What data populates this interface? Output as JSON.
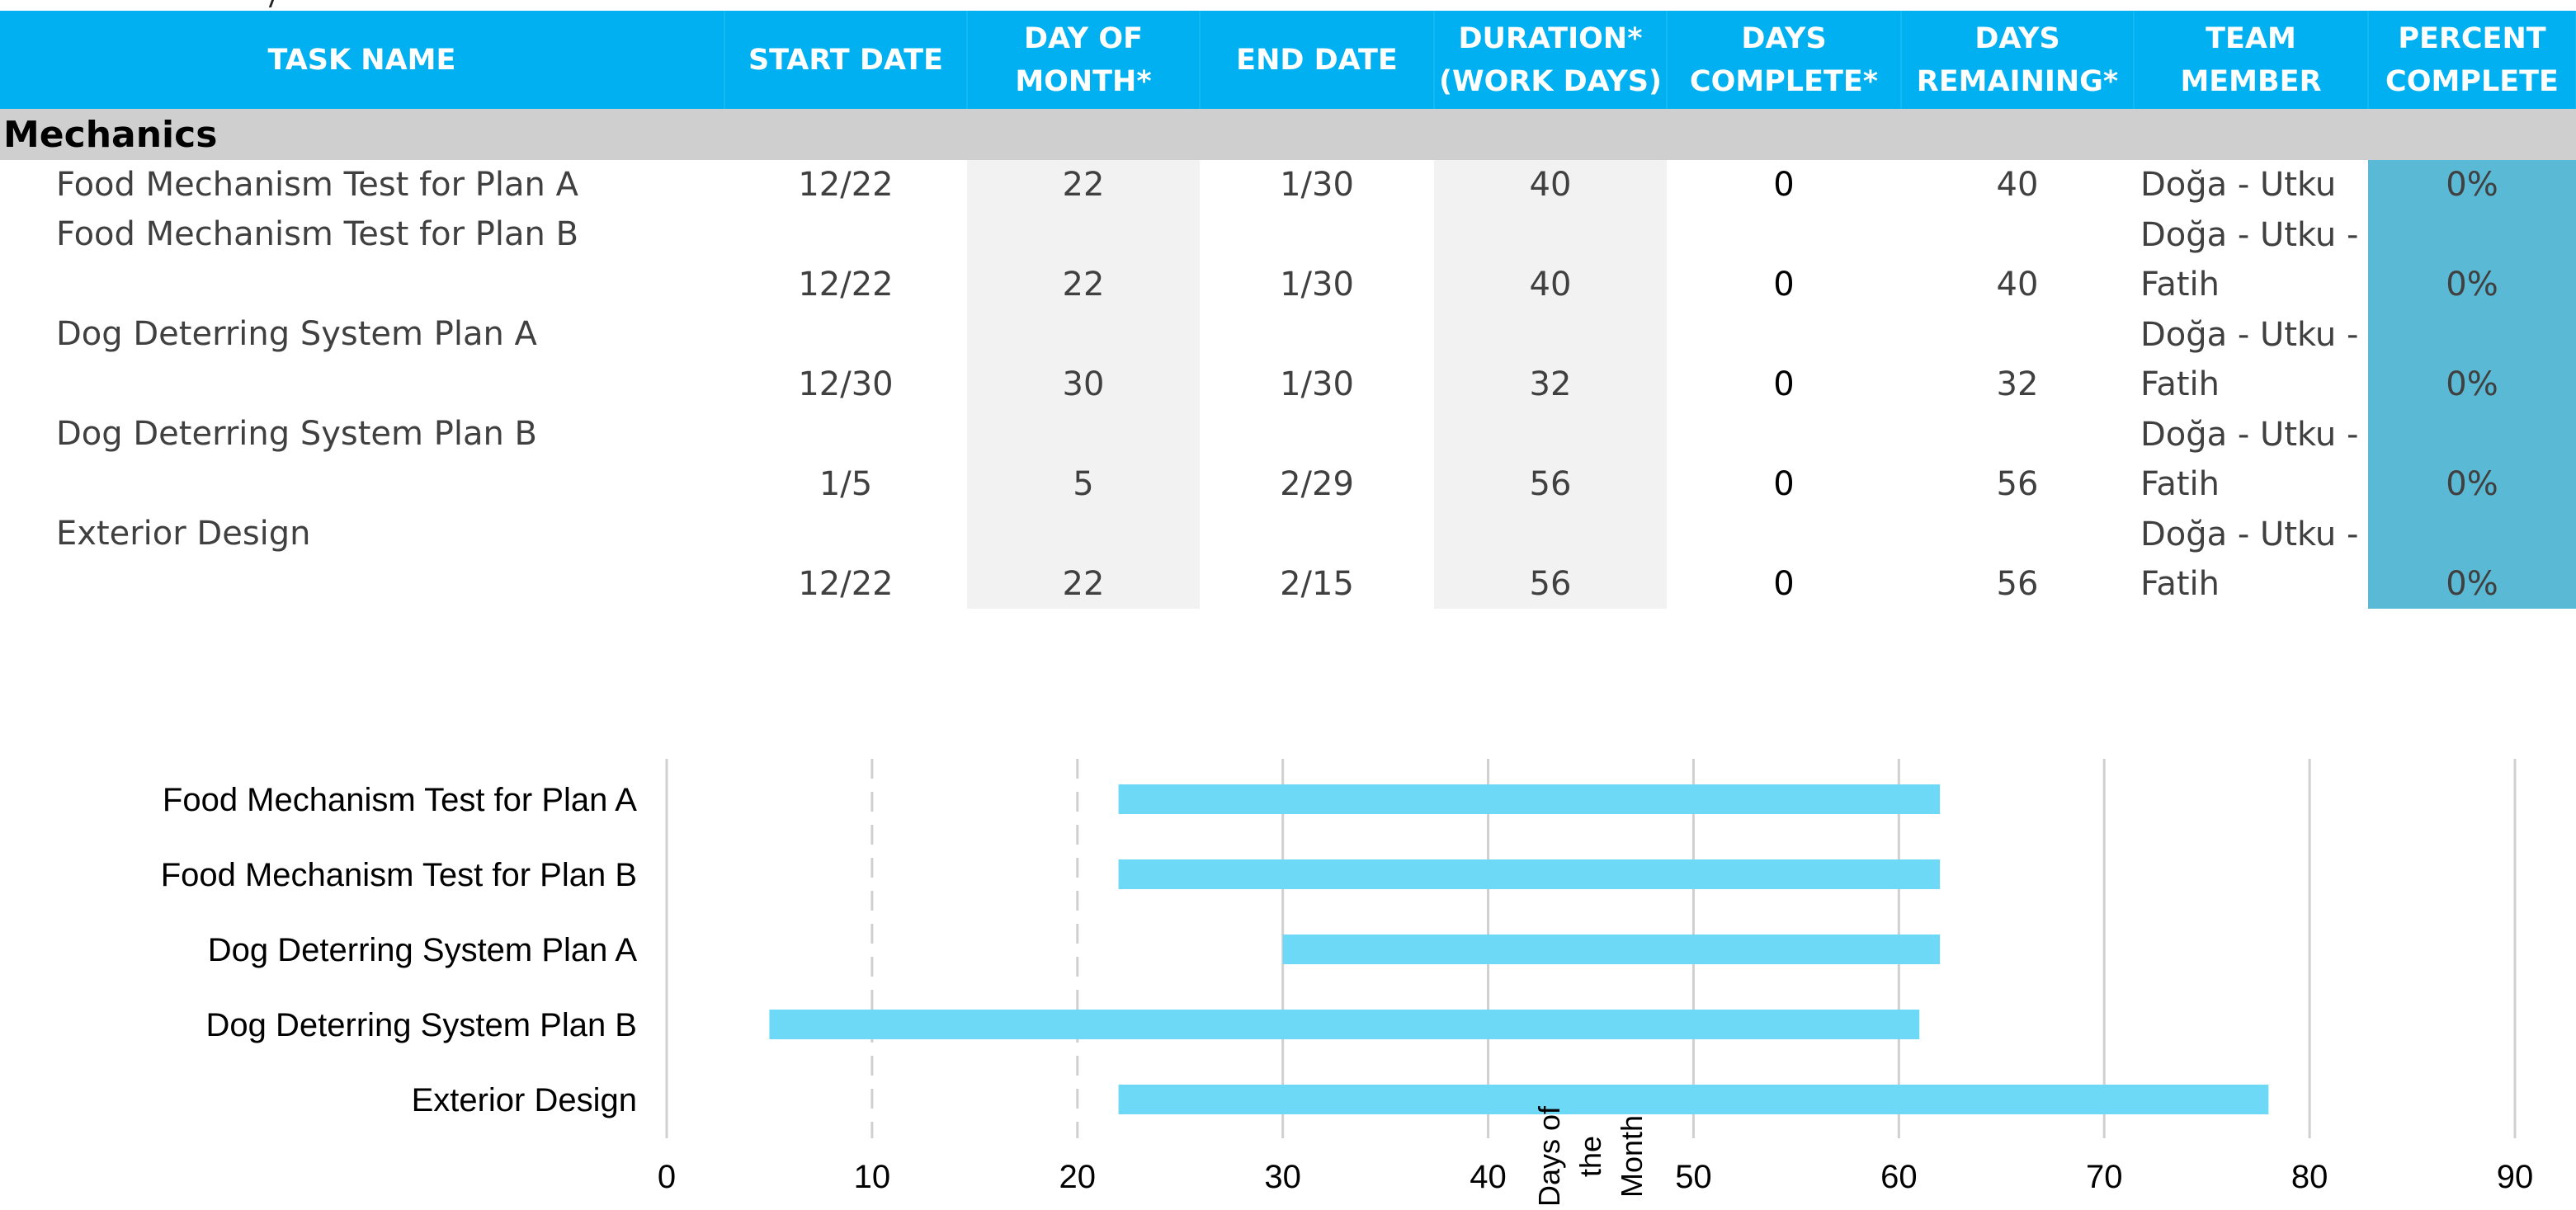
{
  "table": {
    "headers": [
      "TASK NAME",
      "START DATE",
      "DAY OF MONTH*",
      "END DATE",
      "DURATION* (WORK DAYS)",
      "DAYS COMPLETE*",
      "DAYS REMAINING*",
      "TEAM MEMBER",
      "PERCENT COMPLETE"
    ],
    "header_lines": [
      [
        "TASK NAME"
      ],
      [
        "START DATE"
      ],
      [
        "DAY OF",
        "MONTH*"
      ],
      [
        "END DATE"
      ],
      [
        "DURATION*",
        "(WORK DAYS)"
      ],
      [
        "DAYS",
        "COMPLETE*"
      ],
      [
        "DAYS",
        "REMAINING*"
      ],
      [
        "TEAM",
        "MEMBER"
      ],
      [
        "PERCENT",
        "COMPLETE"
      ]
    ],
    "section": "Mechanics",
    "rows": [
      {
        "task_name": "Food Mechanism Test for Plan A",
        "start_date": "12/22",
        "day_of_month": "22",
        "end_date": "1/30",
        "duration": "40",
        "days_complete": "0",
        "days_remaining": "40",
        "team_member_lines": [
          "Doğa - Utku"
        ],
        "percent_complete": "0%"
      },
      {
        "task_name": "Food Mechanism Test for Plan B",
        "start_date": "12/22",
        "day_of_month": "22",
        "end_date": "1/30",
        "duration": "40",
        "days_complete": "0",
        "days_remaining": "40",
        "team_member_lines": [
          "Doğa - Utku -",
          "Fatih"
        ],
        "percent_complete": "0%"
      },
      {
        "task_name": "Dog Deterring System Plan A",
        "start_date": "12/30",
        "day_of_month": "30",
        "end_date": "1/30",
        "duration": "32",
        "days_complete": "0",
        "days_remaining": "32",
        "team_member_lines": [
          "Doğa - Utku -",
          "Fatih"
        ],
        "percent_complete": "0%"
      },
      {
        "task_name": "Dog Deterring System Plan B",
        "start_date": "1/5",
        "day_of_month": "5",
        "end_date": "2/29",
        "duration": "56",
        "days_complete": "0",
        "days_remaining": "56",
        "team_member_lines": [
          "Doğa - Utku -",
          "Fatih"
        ],
        "percent_complete": "0%"
      },
      {
        "task_name": "Exterior Design",
        "start_date": "12/22",
        "day_of_month": "22",
        "end_date": "2/15",
        "duration": "56",
        "days_complete": "0",
        "days_remaining": "56",
        "team_member_lines": [
          "Doğa - Utku -",
          "Fatih"
        ],
        "percent_complete": "0%"
      }
    ]
  },
  "colors": {
    "header_bg": "#00b0f0",
    "header_text": "#ffffff",
    "section_bg": "#cfcfcf",
    "shaded_col": "#f2f2f2",
    "percent_bg": "#5ab9d5",
    "bar_fill": "#6dd9f6",
    "gridline": "#d0d0d0"
  },
  "chart_data": {
    "type": "bar",
    "orientation": "horizontal-stacked-gantt",
    "categories": [
      "Food Mechanism Test for Plan A",
      "Food Mechanism Test for Plan B",
      "Dog Deterring System Plan A",
      "Dog Deterring System Plan B",
      "Exterior Design"
    ],
    "series": [
      {
        "name": "",
        "role": "invisible-offset",
        "values": [
          22,
          22,
          30,
          5,
          22
        ]
      },
      {
        "name": "",
        "role": "visible-bar",
        "values": [
          40,
          40,
          32,
          56,
          56
        ]
      }
    ],
    "xlabel": "Days of the Month",
    "xlabel_lines": [
      "Days of",
      "the",
      "Month"
    ],
    "ylabel": "",
    "title": "",
    "xlim": [
      0,
      90
    ],
    "xticks": [
      0,
      10,
      20,
      30,
      40,
      50,
      60,
      70,
      80,
      90
    ],
    "grid": true,
    "legend": "none"
  }
}
